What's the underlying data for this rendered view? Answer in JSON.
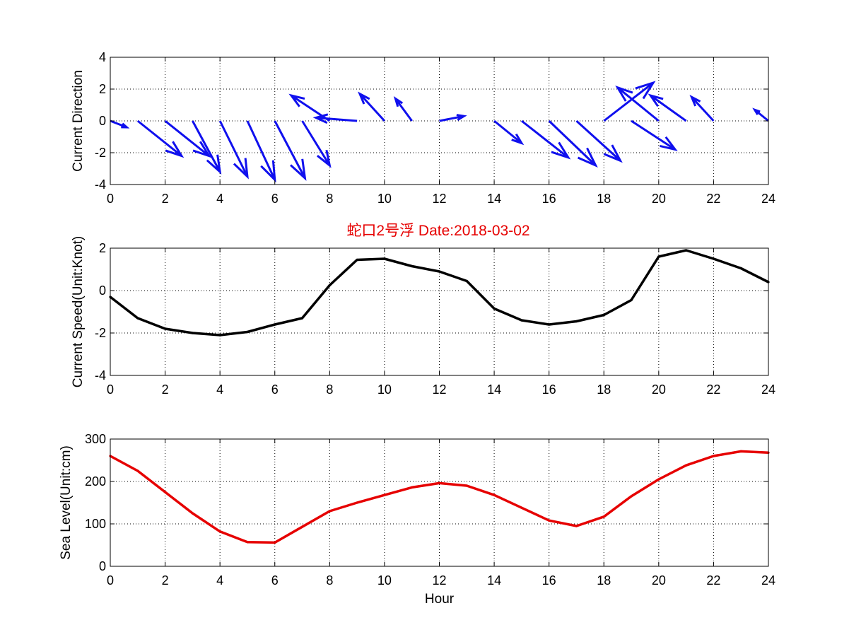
{
  "figure_title": "蛇口2号浮   Date:2018-03-02",
  "colors": {
    "title": "#e60000",
    "direction_arrows": "#1010ee",
    "speed_line": "#000000",
    "sea_level_line": "#e60000",
    "grid": "#000000"
  },
  "chart_data": [
    {
      "type": "quiver",
      "ylabel": "Current Direction",
      "xlabel": "",
      "xlim": [
        0,
        24
      ],
      "ylim": [
        -4,
        4
      ],
      "xticks": [
        0,
        2,
        4,
        6,
        8,
        10,
        12,
        14,
        16,
        18,
        20,
        22,
        24
      ],
      "yticks": [
        -4,
        -2,
        0,
        2,
        4
      ],
      "grid": true,
      "origin_y": 0,
      "x": [
        0,
        1,
        2,
        3,
        4,
        5,
        6,
        7,
        8,
        9,
        10,
        11,
        12,
        13,
        14,
        15,
        16,
        17,
        18,
        19,
        20,
        21,
        22,
        23,
        24
      ],
      "u": [
        0.6,
        1.6,
        1.6,
        1.0,
        1.0,
        1.0,
        1.1,
        1.0,
        -1.4,
        -1.5,
        -0.9,
        -0.6,
        0.9,
        0.0,
        1.0,
        1.7,
        1.7,
        1.6,
        1.8,
        1.6,
        -1.5,
        -1.3,
        -0.8,
        0.0,
        -0.5
      ],
      "v": [
        -0.4,
        -2.2,
        -2.2,
        -3.2,
        -3.5,
        -3.7,
        -3.6,
        -2.8,
        1.6,
        0.2,
        1.7,
        1.4,
        0.3,
        0.0,
        -1.4,
        -2.3,
        -2.8,
        -2.5,
        2.4,
        -1.8,
        2.1,
        1.6,
        1.5,
        0.0,
        0.7
      ]
    },
    {
      "type": "line",
      "title": "蛇口2号浮   Date:2018-03-02",
      "ylabel": "Current Speed(Unit:Knot)",
      "xlabel": "",
      "xlim": [
        0,
        24
      ],
      "ylim": [
        -4,
        2
      ],
      "xticks": [
        0,
        2,
        4,
        6,
        8,
        10,
        12,
        14,
        16,
        18,
        20,
        22,
        24
      ],
      "yticks": [
        -4,
        -2,
        0,
        2
      ],
      "grid": true,
      "x": [
        0,
        1,
        2,
        3,
        4,
        5,
        6,
        7,
        8,
        9,
        10,
        11,
        12,
        13,
        14,
        15,
        16,
        17,
        18,
        19,
        20,
        21,
        22,
        23,
        24
      ],
      "values": [
        -0.3,
        -1.3,
        -1.8,
        -2.0,
        -2.1,
        -1.95,
        -1.6,
        -1.3,
        0.25,
        1.45,
        1.5,
        1.15,
        0.9,
        0.45,
        -0.85,
        -1.4,
        -1.6,
        -1.45,
        -1.15,
        -0.45,
        1.6,
        1.9,
        1.5,
        1.05,
        0.4
      ]
    },
    {
      "type": "line",
      "ylabel": "Sea Level(Unit:cm)",
      "xlabel": "Hour",
      "xlim": [
        0,
        24
      ],
      "ylim": [
        0,
        300
      ],
      "xticks": [
        0,
        2,
        4,
        6,
        8,
        10,
        12,
        14,
        16,
        18,
        20,
        22,
        24
      ],
      "yticks": [
        0,
        100,
        200,
        300
      ],
      "grid": true,
      "x": [
        0,
        1,
        2,
        3,
        4,
        5,
        6,
        7,
        8,
        9,
        10,
        11,
        12,
        13,
        14,
        15,
        16,
        17,
        18,
        19,
        20,
        21,
        22,
        23,
        24
      ],
      "values": [
        260,
        225,
        175,
        125,
        82,
        57,
        56,
        93,
        130,
        150,
        168,
        186,
        196,
        190,
        168,
        138,
        108,
        95,
        117,
        165,
        205,
        238,
        260,
        271,
        268
      ]
    }
  ]
}
